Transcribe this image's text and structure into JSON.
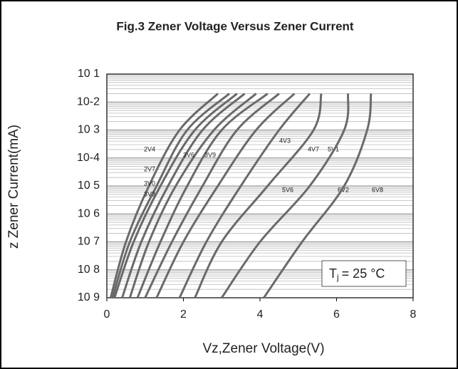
{
  "chart_data": {
    "type": "line",
    "title": "Fig.3 Zener Voltage Versus Zener Current",
    "xlabel": "Vz,Zener Voltage(V)",
    "ylabel": "z Zener Current(mA)",
    "annotation": {
      "symbol": "T",
      "subscript": "j",
      "text": "= 25 °C"
    },
    "log_y": true,
    "grid": true,
    "color": "#6a6a6a",
    "xlim": [
      0,
      8
    ],
    "xticks": [
      0,
      2,
      4,
      6,
      8
    ],
    "ylim": [
      1e-09,
      0.1
    ],
    "yticks": [
      {
        "value": 0.1,
        "label": "10 1"
      },
      {
        "value": 0.01,
        "label": "10-2"
      },
      {
        "value": 0.001,
        "label": "10 3"
      },
      {
        "value": 0.0001,
        "label": "10-4"
      },
      {
        "value": 1e-05,
        "label": "10 5"
      },
      {
        "value": 1e-06,
        "label": "10 6"
      },
      {
        "value": 1e-07,
        "label": "10 7"
      },
      {
        "value": 1e-08,
        "label": "10 8"
      },
      {
        "value": 1e-09,
        "label": "10 9"
      }
    ],
    "series": [
      {
        "name": "2V4",
        "x": [
          0.1,
          0.5,
          1.1,
          1.9,
          2.9
        ],
        "values": [
          1e-09,
          1e-07,
          1e-05,
          0.001,
          0.02
        ]
      },
      {
        "name": "2V7",
        "x": [
          0.15,
          0.6,
          1.3,
          2.1,
          3.2
        ],
        "values": [
          1e-09,
          1e-07,
          1e-05,
          0.001,
          0.02
        ]
      },
      {
        "name": "3V0",
        "x": [
          0.2,
          0.7,
          1.4,
          2.3,
          3.4
        ],
        "values": [
          1e-09,
          1e-07,
          1e-05,
          0.001,
          0.02
        ]
      },
      {
        "name": "3V3",
        "x": [
          0.4,
          0.9,
          1.6,
          2.5,
          3.6
        ],
        "values": [
          1e-09,
          1e-07,
          1e-05,
          0.001,
          0.02
        ]
      },
      {
        "name": "3V6",
        "x": [
          0.6,
          1.1,
          1.8,
          2.8,
          3.9
        ],
        "values": [
          1e-09,
          1e-07,
          1e-05,
          0.001,
          0.02
        ]
      },
      {
        "name": "3V9",
        "x": [
          0.8,
          1.4,
          2.1,
          3.0,
          4.2
        ],
        "values": [
          1e-09,
          1e-07,
          1e-05,
          0.001,
          0.02
        ]
      },
      {
        "name": "4V3",
        "x": [
          1.0,
          1.7,
          2.5,
          3.4,
          4.5
        ],
        "values": [
          1e-09,
          1e-07,
          1e-05,
          0.001,
          0.02
        ]
      },
      {
        "name": "4V7",
        "x": [
          1.3,
          2.0,
          2.9,
          3.9,
          4.9
        ],
        "values": [
          1e-09,
          1e-07,
          1e-05,
          0.001,
          0.02
        ]
      },
      {
        "name": "5V1",
        "x": [
          1.9,
          2.6,
          3.5,
          4.5,
          5.3
        ],
        "values": [
          1e-09,
          1e-07,
          1e-05,
          0.001,
          0.02
        ]
      },
      {
        "name": "5V6",
        "x": [
          2.3,
          3.0,
          4.2,
          5.4,
          5.6
        ],
        "values": [
          1e-09,
          1e-07,
          1e-05,
          0.001,
          0.02
        ]
      },
      {
        "name": "6V2",
        "x": [
          3.0,
          4.0,
          5.3,
          6.2,
          6.3
        ],
        "values": [
          1e-09,
          1e-07,
          1e-05,
          0.001,
          0.02
        ]
      },
      {
        "name": "6V8",
        "x": [
          4.1,
          5.1,
          6.2,
          6.8,
          6.9
        ],
        "values": [
          1e-09,
          1e-07,
          1e-05,
          0.001,
          0.02
        ]
      }
    ]
  }
}
